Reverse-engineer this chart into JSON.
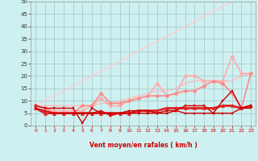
{
  "xlabel": "Vent moyen/en rafales ( km/h )",
  "xlim": [
    -0.5,
    23.5
  ],
  "ylim": [
    0,
    50
  ],
  "yticks": [
    0,
    5,
    10,
    15,
    20,
    25,
    30,
    35,
    40,
    45,
    50
  ],
  "xticks": [
    0,
    1,
    2,
    3,
    4,
    5,
    6,
    7,
    8,
    9,
    10,
    11,
    12,
    13,
    14,
    15,
    16,
    17,
    18,
    19,
    20,
    21,
    22,
    23
  ],
  "bg_color": "#cff0f0",
  "grid_color": "#aacccc",
  "series": [
    {
      "x": [
        0,
        1,
        2,
        3,
        4,
        5,
        6,
        7,
        8,
        9,
        10,
        11,
        12,
        13,
        14,
        15,
        16,
        17,
        18,
        19,
        20,
        21,
        22,
        23
      ],
      "y": [
        8,
        8,
        8,
        8,
        8,
        8,
        8,
        9,
        9,
        10,
        11,
        12,
        13,
        14,
        14,
        15,
        17,
        18,
        18,
        18,
        18,
        18,
        20,
        21
      ],
      "color": "#ffbbbb",
      "lw": 1.0,
      "marker": null,
      "ms": 0,
      "alpha": 1.0,
      "zorder": 1
    },
    {
      "x": [
        0,
        21
      ],
      "y": [
        8,
        50
      ],
      "color": "#ffcccc",
      "lw": 1.0,
      "marker": null,
      "ms": 0,
      "alpha": 1.0,
      "zorder": 2
    },
    {
      "x": [
        0,
        1,
        2,
        3,
        4,
        5,
        6,
        7,
        8,
        9,
        10,
        11,
        12,
        13,
        14,
        15,
        16,
        17,
        18,
        19,
        20,
        21,
        22,
        23
      ],
      "y": [
        8,
        7,
        6,
        6,
        6,
        6,
        8,
        11,
        8,
        8,
        10,
        11,
        12,
        17,
        12,
        13,
        20,
        20,
        18,
        18,
        18,
        28,
        21,
        21
      ],
      "color": "#ffaaaa",
      "lw": 1.2,
      "marker": "D",
      "ms": 2.5,
      "alpha": 1.0,
      "zorder": 3
    },
    {
      "x": [
        0,
        1,
        2,
        3,
        4,
        5,
        6,
        7,
        8,
        9,
        10,
        11,
        12,
        13,
        14,
        15,
        16,
        17,
        18,
        19,
        20,
        21,
        22,
        23
      ],
      "y": [
        8,
        7,
        5,
        5,
        5,
        8,
        8,
        13,
        9,
        9,
        10,
        11,
        12,
        12,
        12,
        13,
        14,
        14,
        16,
        18,
        17,
        13,
        7,
        21
      ],
      "color": "#ff8888",
      "lw": 1.2,
      "marker": "D",
      "ms": 2.5,
      "alpha": 1.0,
      "zorder": 4
    },
    {
      "x": [
        0,
        1,
        2,
        3,
        4,
        5,
        6,
        7,
        8,
        9,
        10,
        11,
        12,
        13,
        14,
        15,
        16,
        17,
        18,
        19,
        20,
        21,
        22,
        23
      ],
      "y": [
        7,
        5,
        5,
        5,
        5,
        5,
        5,
        5,
        5,
        5,
        5,
        6,
        6,
        6,
        7,
        7,
        7,
        7,
        7,
        7,
        8,
        8,
        7,
        8
      ],
      "color": "#dd2222",
      "lw": 2.0,
      "marker": "^",
      "ms": 3.0,
      "alpha": 1.0,
      "zorder": 6
    },
    {
      "x": [
        0,
        1,
        2,
        3,
        4,
        5,
        6,
        7,
        8,
        9,
        10,
        11,
        12,
        13,
        14,
        15,
        16,
        17,
        18,
        19,
        20,
        21,
        22,
        23
      ],
      "y": [
        7,
        6,
        5,
        5,
        5,
        5,
        5,
        6,
        4,
        5,
        6,
        6,
        6,
        5,
        5,
        6,
        5,
        5,
        5,
        5,
        5,
        5,
        7,
        7
      ],
      "color": "#cc0000",
      "lw": 1.0,
      "marker": "s",
      "ms": 2.0,
      "alpha": 1.0,
      "zorder": 7
    },
    {
      "x": [
        0,
        1,
        2,
        3,
        4,
        5,
        6,
        7,
        8,
        9,
        10,
        11,
        12,
        13,
        14,
        15,
        16,
        17,
        18,
        19,
        20,
        21,
        22,
        23
      ],
      "y": [
        8,
        7,
        7,
        7,
        7,
        1,
        7,
        5,
        5,
        5,
        5,
        5,
        5,
        5,
        6,
        6,
        8,
        8,
        8,
        5,
        10,
        14,
        7,
        8
      ],
      "color": "#cc0000",
      "lw": 1.0,
      "marker": "s",
      "ms": 2.0,
      "alpha": 1.0,
      "zorder": 7
    }
  ],
  "arrow_chars": [
    "↓",
    "↓",
    "↓",
    "↓",
    "↓",
    "→",
    "↓",
    "↙",
    "↖",
    "↑",
    "↑",
    "↗",
    "↖",
    "↑",
    "↗",
    "↑",
    "↗",
    "↖",
    "↘",
    "↘",
    "↘",
    "↙",
    "↘",
    "↗"
  ]
}
